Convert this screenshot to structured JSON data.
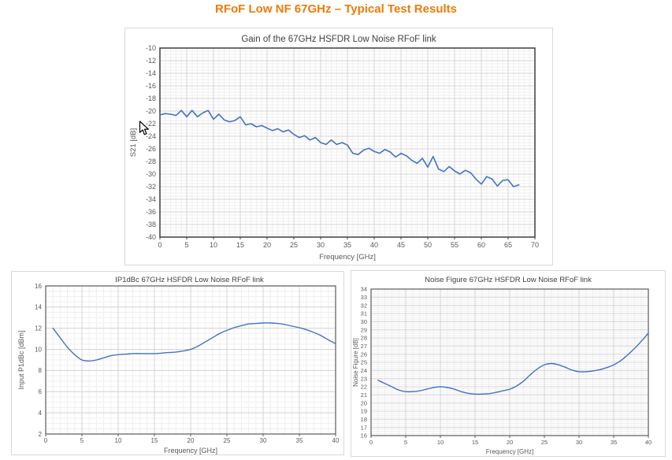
{
  "page": {
    "title": "RFoF Low NF 67GHz – Typical Test Results"
  },
  "colors": {
    "accent_orange": "#EE7B08",
    "series_blue": "#4472C4",
    "axis_text": "#595959",
    "title_text": "#404040"
  },
  "chart_data": [
    {
      "type": "line",
      "title": "Gain of the 67GHz HSFDR Low Noise RFoF link",
      "xlabel": "Frequency [GHz]",
      "ylabel": "S21 [dB]",
      "xlim": [
        0,
        70
      ],
      "ylim": [
        -40,
        -10
      ],
      "x_tick_step": 5,
      "y_tick_step": 2,
      "x_minor_step": 1,
      "y_minor_step": 0.5,
      "grid": true,
      "legend": "none",
      "line_color": "#4472C4",
      "x": [
        0,
        1,
        2,
        3,
        4,
        5,
        6,
        7,
        8,
        9,
        10,
        11,
        12,
        13,
        14,
        15,
        16,
        17,
        18,
        19,
        20,
        21,
        22,
        23,
        24,
        25,
        26,
        27,
        28,
        29,
        30,
        31,
        32,
        33,
        34,
        35,
        36,
        37,
        38,
        39,
        40,
        41,
        42,
        43,
        44,
        45,
        46,
        47,
        48,
        49,
        50,
        51,
        52,
        53,
        54,
        55,
        56,
        57,
        58,
        59,
        60,
        61,
        62,
        63,
        64,
        65,
        66,
        67
      ],
      "y": [
        -20.6,
        -20.4,
        -20.5,
        -20.7,
        -19.9,
        -20.9,
        -19.9,
        -20.9,
        -20.3,
        -19.9,
        -21.3,
        -20.5,
        -21.4,
        -21.7,
        -21.5,
        -20.9,
        -22.2,
        -22.0,
        -22.5,
        -22.3,
        -22.7,
        -23.1,
        -22.8,
        -23.3,
        -23.0,
        -23.7,
        -24.2,
        -23.9,
        -24.6,
        -24.2,
        -25.0,
        -25.3,
        -24.6,
        -25.3,
        -25.0,
        -25.4,
        -26.7,
        -26.9,
        -26.2,
        -25.9,
        -26.4,
        -26.7,
        -26.1,
        -26.5,
        -27.3,
        -26.7,
        -27.1,
        -27.8,
        -28.3,
        -27.5,
        -28.9,
        -27.2,
        -29.2,
        -29.6,
        -28.8,
        -29.5,
        -30.0,
        -29.4,
        -29.8,
        -30.8,
        -31.6,
        -30.4,
        -30.8,
        -31.9,
        -31.0,
        -30.9,
        -32.0,
        -31.7
      ]
    },
    {
      "type": "line",
      "title": "IP1dBc 67GHz HSFDR Low Noise RFoF link",
      "xlabel": "Frequency [GHz]",
      "ylabel": "Input P1dBc [dBm]",
      "xlim": [
        0,
        40
      ],
      "ylim": [
        2,
        16
      ],
      "x_tick_step": 5,
      "y_tick_step": 2,
      "x_minor_step": 1,
      "y_minor_step": 0.5,
      "grid": true,
      "legend": "none",
      "line_color": "#4472C4",
      "x": [
        1,
        2,
        3,
        4,
        5,
        6,
        7,
        8,
        9,
        10,
        11,
        12,
        13,
        14,
        15,
        16,
        17,
        18,
        19,
        20,
        21,
        22,
        23,
        24,
        25,
        26,
        27,
        28,
        29,
        30,
        31,
        32,
        33,
        34,
        35,
        36,
        37,
        38,
        39,
        40
      ],
      "y": [
        12.0,
        11.1,
        10.2,
        9.5,
        9.0,
        8.9,
        9.0,
        9.2,
        9.4,
        9.5,
        9.55,
        9.6,
        9.6,
        9.6,
        9.6,
        9.65,
        9.7,
        9.75,
        9.85,
        10.0,
        10.3,
        10.7,
        11.1,
        11.5,
        11.8,
        12.05,
        12.25,
        12.4,
        12.45,
        12.5,
        12.5,
        12.45,
        12.35,
        12.2,
        12.05,
        11.85,
        11.6,
        11.3,
        10.9,
        10.55
      ]
    },
    {
      "type": "line",
      "title": "Noise Figure 67GHz HSFDR Low Noise RFoF link",
      "xlabel": "Frequency [GHz]",
      "ylabel": "Noise Figure [dB]",
      "xlim": [
        0,
        40
      ],
      "ylim": [
        16,
        34
      ],
      "x_tick_step": 5,
      "y_tick_step": 1,
      "x_minor_step": 1,
      "y_minor_step": 0.25,
      "grid": true,
      "legend": "none",
      "line_color": "#4472C4",
      "x": [
        1,
        2,
        3,
        4,
        5,
        6,
        7,
        8,
        9,
        10,
        11,
        12,
        13,
        14,
        15,
        16,
        17,
        18,
        19,
        20,
        21,
        22,
        23,
        24,
        25,
        26,
        27,
        28,
        29,
        30,
        31,
        32,
        33,
        34,
        35,
        36,
        37,
        38,
        39,
        40
      ],
      "y": [
        22.8,
        22.4,
        22.0,
        21.6,
        21.4,
        21.4,
        21.5,
        21.7,
        21.9,
        22.0,
        21.9,
        21.7,
        21.4,
        21.2,
        21.1,
        21.1,
        21.15,
        21.3,
        21.5,
        21.7,
        22.1,
        22.7,
        23.5,
        24.2,
        24.7,
        24.85,
        24.7,
        24.4,
        24.05,
        23.85,
        23.85,
        23.95,
        24.1,
        24.35,
        24.7,
        25.2,
        25.9,
        26.7,
        27.6,
        28.6
      ]
    }
  ]
}
